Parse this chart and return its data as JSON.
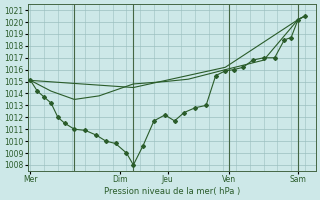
{
  "background_color": "#cde8e8",
  "grid_color": "#9bbfbf",
  "line_color": "#2a5c2a",
  "marker_color": "#2a5c2a",
  "xlabel": "Pression niveau de la mer( hPa )",
  "ylim": [
    1007.5,
    1021.5
  ],
  "yticks": [
    1008,
    1009,
    1010,
    1011,
    1012,
    1013,
    1014,
    1015,
    1016,
    1017,
    1018,
    1019,
    1020,
    1021
  ],
  "day_labels": [
    "Mer",
    "Dim",
    "Jeu",
    "Ven",
    "Sam"
  ],
  "day_x": [
    0,
    6.5,
    10,
    14.5,
    19.5
  ],
  "vline_positions": [
    3.2,
    7.5,
    14.5,
    19.5
  ],
  "line1_x": [
    0,
    0.5,
    1.0,
    1.5,
    2.0,
    2.5,
    3.2,
    4.0,
    4.8,
    5.5,
    6.2,
    7.0,
    7.5,
    8.2,
    9.0,
    9.8,
    10.5,
    11.2,
    12.0,
    12.8,
    13.5,
    14.2,
    14.8,
    15.5,
    16.2,
    17.0,
    17.8,
    18.5,
    19.0,
    19.5,
    20
  ],
  "line1_y": [
    1015.1,
    1014.2,
    1013.7,
    1013.2,
    1012.0,
    1011.5,
    1011.0,
    1010.9,
    1010.5,
    1010.0,
    1009.8,
    1009.0,
    1008.0,
    1009.6,
    1011.7,
    1012.2,
    1011.7,
    1012.4,
    1012.8,
    1013.0,
    1015.5,
    1015.9,
    1016.0,
    1016.2,
    1016.8,
    1017.0,
    1017.0,
    1018.5,
    1018.7,
    1020.2,
    1020.5
  ],
  "line2_x": [
    0,
    1.5,
    3.2,
    5.0,
    7.5,
    9.8,
    11.5,
    14.2,
    17.0,
    19.5,
    20
  ],
  "line2_y": [
    1015.1,
    1014.2,
    1013.5,
    1013.8,
    1014.8,
    1015.0,
    1015.2,
    1016.0,
    1016.8,
    1020.2,
    1020.5
  ],
  "line3_x": [
    0,
    7.5,
    14.2,
    19.5,
    20
  ],
  "line3_y": [
    1015.1,
    1014.5,
    1016.2,
    1020.2,
    1020.5
  ]
}
